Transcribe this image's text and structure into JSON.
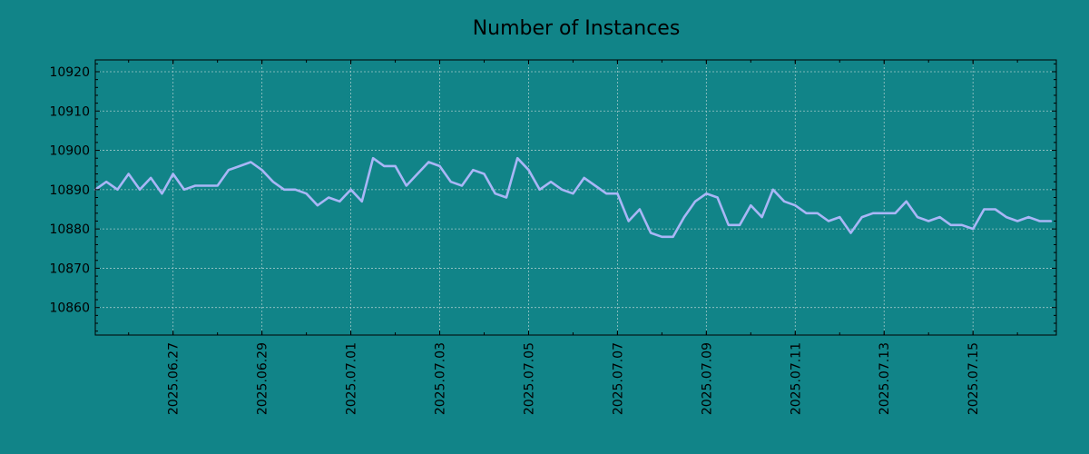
{
  "chart_data": {
    "type": "line",
    "title": "Number of Instances",
    "xlabel": "",
    "ylabel": "",
    "x_type": "date",
    "xlim": [
      "2025.06.25 06:00",
      "2025.07.16 21:00"
    ],
    "ylim": [
      10853,
      10923
    ],
    "x_ticks": [
      "2025.06.27",
      "2025.06.29",
      "2025.07.01",
      "2025.07.03",
      "2025.07.05",
      "2025.07.07",
      "2025.07.09",
      "2025.07.11",
      "2025.07.13",
      "2025.07.15"
    ],
    "y_ticks": [
      10860,
      10870,
      10880,
      10890,
      10900,
      10910,
      10920
    ],
    "grid": true,
    "legend": false,
    "colors": {
      "background": "#118488",
      "line": "#a9b6f6"
    },
    "series": [
      {
        "x": [
          "2025.06.25 06:00",
          "2025.06.25 12:00",
          "2025.06.25 18:00",
          "2025.06.26 00:00",
          "2025.06.26 06:00",
          "2025.06.26 12:00",
          "2025.06.26 18:00",
          "2025.06.27 00:00",
          "2025.06.27 06:00",
          "2025.06.27 12:00",
          "2025.06.27 18:00",
          "2025.06.28 00:00",
          "2025.06.28 06:00",
          "2025.06.28 12:00",
          "2025.06.28 18:00",
          "2025.06.29 00:00",
          "2025.06.29 06:00",
          "2025.06.29 12:00",
          "2025.06.29 18:00",
          "2025.06.30 00:00",
          "2025.06.30 06:00",
          "2025.06.30 12:00",
          "2025.06.30 18:00",
          "2025.07.01 00:00",
          "2025.07.01 06:00",
          "2025.07.01 12:00",
          "2025.07.01 18:00",
          "2025.07.02 00:00",
          "2025.07.02 06:00",
          "2025.07.02 12:00",
          "2025.07.02 18:00",
          "2025.07.03 00:00",
          "2025.07.03 06:00",
          "2025.07.03 12:00",
          "2025.07.03 18:00",
          "2025.07.04 00:00",
          "2025.07.04 06:00",
          "2025.07.04 12:00",
          "2025.07.04 18:00",
          "2025.07.05 00:00",
          "2025.07.05 06:00",
          "2025.07.05 12:00",
          "2025.07.05 18:00",
          "2025.07.06 00:00",
          "2025.07.06 06:00",
          "2025.07.06 12:00",
          "2025.07.06 18:00",
          "2025.07.07 00:00",
          "2025.07.07 06:00",
          "2025.07.07 12:00",
          "2025.07.07 18:00",
          "2025.07.08 00:00",
          "2025.07.08 06:00",
          "2025.07.08 12:00",
          "2025.07.08 18:00",
          "2025.07.09 00:00",
          "2025.07.09 06:00",
          "2025.07.09 12:00",
          "2025.07.09 18:00",
          "2025.07.10 00:00",
          "2025.07.10 06:00",
          "2025.07.10 12:00",
          "2025.07.10 18:00",
          "2025.07.11 00:00",
          "2025.07.11 06:00",
          "2025.07.11 12:00",
          "2025.07.11 18:00",
          "2025.07.12 00:00",
          "2025.07.12 06:00",
          "2025.07.12 12:00",
          "2025.07.12 18:00",
          "2025.07.13 00:00",
          "2025.07.13 06:00",
          "2025.07.13 12:00",
          "2025.07.13 18:00",
          "2025.07.14 00:00",
          "2025.07.14 06:00",
          "2025.07.14 12:00",
          "2025.07.14 18:00",
          "2025.07.15 00:00",
          "2025.07.15 06:00",
          "2025.07.15 12:00",
          "2025.07.15 18:00",
          "2025.07.16 00:00",
          "2025.07.16 06:00",
          "2025.07.16 12:00",
          "2025.07.16 18:00"
        ],
        "y": [
          10890,
          10892,
          10890,
          10894,
          10890,
          10893,
          10889,
          10894,
          10890,
          10891,
          10891,
          10891,
          10895,
          10896,
          10897,
          10895,
          10892,
          10890,
          10890,
          10889,
          10886,
          10888,
          10887,
          10890,
          10887,
          10898,
          10896,
          10896,
          10891,
          10894,
          10897,
          10896,
          10892,
          10891,
          10895,
          10894,
          10889,
          10888,
          10898,
          10895,
          10890,
          10892,
          10890,
          10889,
          10893,
          10891,
          10889,
          10889,
          10882,
          10885,
          10879,
          10878,
          10878,
          10883,
          10887,
          10889,
          10888,
          10881,
          10881,
          10886,
          10883,
          10890,
          10887,
          10886,
          10884,
          10884,
          10882,
          10883,
          10879,
          10883,
          10884,
          10884,
          10884,
          10887,
          10883,
          10882,
          10883,
          10881,
          10881,
          10880,
          10885,
          10885,
          10883,
          10882,
          10883,
          10882,
          10882
        ]
      }
    ]
  }
}
